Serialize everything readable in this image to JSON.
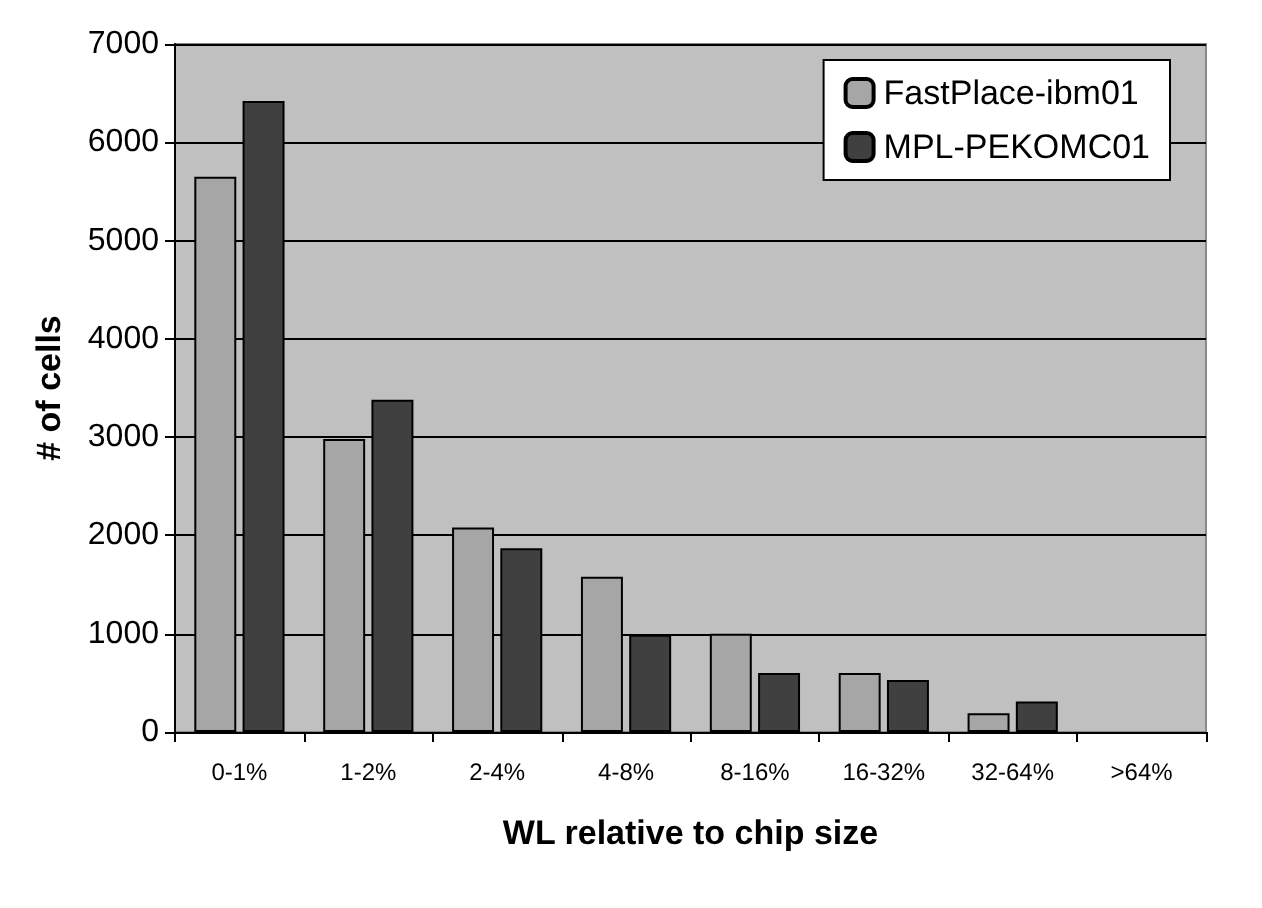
{
  "chart_data": {
    "type": "bar",
    "xlabel": "WL relative to chip size",
    "ylabel": "# of cells",
    "categories": [
      "0-1%",
      "1-2%",
      "2-4%",
      "4-8%",
      "8-16%",
      "16-32%",
      "32-64%",
      ">64%"
    ],
    "series": [
      {
        "name": "FastPlace-ibm01",
        "color": "#a6a6a6",
        "values": [
          5650,
          2980,
          2080,
          1580,
          1000,
          600,
          190,
          0
        ]
      },
      {
        "name": "MPL-PEKOMC01",
        "color": "#404040",
        "values": [
          6420,
          3380,
          1870,
          990,
          600,
          530,
          310,
          0
        ]
      }
    ],
    "ylim": [
      0,
      7000
    ],
    "yticks": [
      0,
      1000,
      2000,
      3000,
      4000,
      5000,
      6000,
      7000
    ],
    "grid": "y",
    "legend": "top right"
  }
}
